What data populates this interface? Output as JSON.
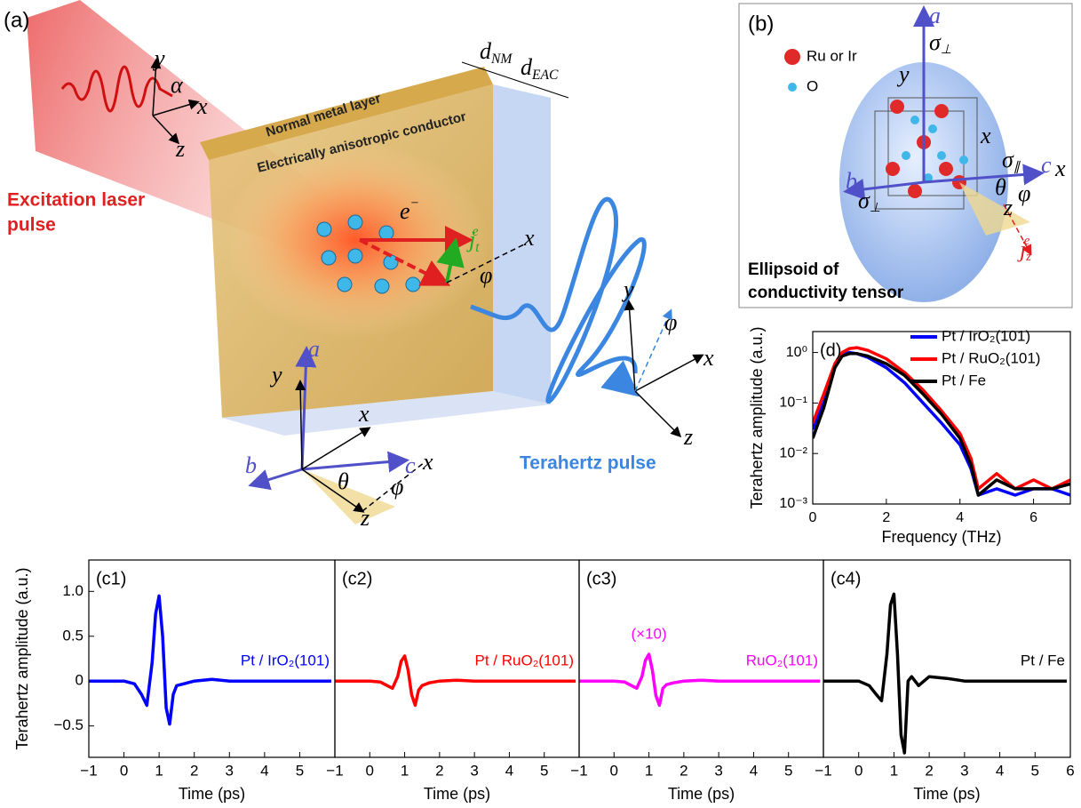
{
  "figure": {
    "panel_a": {
      "label": "(a)",
      "laser_lines": [
        "Excitation laser",
        "pulse"
      ],
      "metal": "Normal metal layer",
      "conductor": "Electrically anisotropic conductor",
      "thz": "Terahertz pulse",
      "symbols": [
        "y",
        "α",
        "x",
        "z",
        {
          "base": "e",
          "sup": "−"
        },
        {
          "base": "j",
          "sub": "t",
          "sup": "e"
        },
        "x",
        "φ",
        "y",
        "x",
        "z",
        "φ",
        "a",
        "y",
        "x",
        "b",
        "c",
        "x",
        "θ",
        "φ",
        "z",
        {
          "base": "d",
          "sub": "NM"
        },
        {
          "base": "d",
          "sub": "EAC"
        }
      ]
    },
    "panel_b": {
      "label": "(b)",
      "ru": "Ru or Ir",
      "o": "O",
      "caption_lines": [
        "Ellipsoid of",
        "conductivity tensor"
      ],
      "symbols": [
        "a",
        {
          "base": "σ",
          "sub": "⊥"
        },
        "y",
        "x",
        {
          "base": "σ",
          "sub": "∥"
        },
        "c",
        "x",
        "b",
        {
          "base": "σ",
          "sub": "⊥"
        },
        "θ",
        "φ",
        "z",
        {
          "base": "j",
          "sub": "z",
          "sup": "e"
        }
      ]
    }
  },
  "chart_data": [
    {
      "type": "line",
      "label": "(d)",
      "log_y": true,
      "x": [
        0,
        0.3,
        0.6,
        0.8,
        1.0,
        1.2,
        1.5,
        2,
        2.5,
        3,
        3.5,
        4,
        4.3,
        4.5,
        5,
        5.5,
        6,
        6.5,
        7
      ],
      "series": [
        {
          "name": "Pt / IrO₂(101)",
          "color": "#0000ff",
          "values": [
            0.03,
            0.1,
            0.5,
            0.9,
            1.0,
            0.95,
            0.8,
            0.5,
            0.25,
            0.1,
            0.04,
            0.015,
            0.005,
            0.0015,
            0.002,
            0.0015,
            0.002,
            0.002,
            0.0015
          ]
        },
        {
          "name": "Pt / RuO₂(101)",
          "color": "#ff0000",
          "values": [
            0.04,
            0.15,
            0.6,
            1.0,
            1.2,
            1.25,
            1.1,
            0.75,
            0.4,
            0.18,
            0.07,
            0.025,
            0.008,
            0.002,
            0.004,
            0.002,
            0.003,
            0.002,
            0.003
          ]
        },
        {
          "name": "Pt / Fe",
          "color": "#000000",
          "values": [
            0.02,
            0.08,
            0.5,
            0.85,
            0.95,
            0.95,
            0.85,
            0.6,
            0.35,
            0.15,
            0.06,
            0.02,
            0.006,
            0.0015,
            0.003,
            0.002,
            0.002,
            0.002,
            0.0025
          ]
        }
      ],
      "xlim": [
        0,
        7
      ],
      "xticks": [
        0,
        2,
        4,
        6
      ],
      "ylim": [
        0.001,
        2.6
      ],
      "yticks": [
        {
          "value": 0.001,
          "label": "10⁻³"
        },
        {
          "value": 0.01,
          "label": "10⁻²"
        },
        {
          "value": 0.1,
          "label": "10⁻¹"
        },
        {
          "value": 1,
          "label": "10⁰"
        }
      ],
      "xlabel": "Frequency (THz)",
      "ylabel": "Terahertz amplitude (a.u.)",
      "legend": "upper right"
    },
    {
      "type": "line",
      "label": "(c1)",
      "x": [
        -1,
        0,
        0.3,
        0.5,
        0.65,
        0.8,
        0.9,
        1.0,
        1.1,
        1.2,
        1.3,
        1.4,
        1.5,
        1.7,
        2.0,
        2.5,
        3,
        4,
        5,
        5.9
      ],
      "series": [
        {
          "name": "Pt / IrO₂(101)",
          "color": "#0000ff",
          "values": [
            0,
            0,
            -0.03,
            -0.15,
            -0.27,
            0.2,
            0.75,
            0.95,
            0.5,
            -0.3,
            -0.48,
            -0.15,
            -0.05,
            -0.03,
            0,
            0.02,
            0,
            0,
            0,
            0
          ]
        }
      ],
      "xlim": [
        -1,
        6
      ],
      "xticks": [
        {
          "value": -1,
          "label": "−1"
        },
        0,
        1,
        2,
        3,
        4,
        5
      ],
      "ylim": [
        -0.85,
        1.35
      ],
      "yticks": [
        {
          "value": -0.5,
          "label": "−0.5"
        },
        0,
        0.5,
        {
          "value": 1,
          "label": "1.0"
        }
      ],
      "xlabel": "Time (ps)",
      "ylabel": "Terahertz amplitude (a.u.)"
    },
    {
      "type": "line",
      "label": "(c2)",
      "x": [
        -1,
        0,
        0.3,
        0.5,
        0.65,
        0.8,
        0.9,
        1.0,
        1.1,
        1.2,
        1.3,
        1.4,
        1.5,
        1.7,
        2.0,
        2.5,
        3,
        4,
        5,
        5.9
      ],
      "series": [
        {
          "name": "Pt / RuO₂(101)",
          "color": "#ff0000",
          "values": [
            0,
            0,
            -0.01,
            -0.05,
            -0.08,
            0.05,
            0.22,
            0.28,
            0.12,
            -0.15,
            -0.27,
            -0.1,
            -0.05,
            -0.02,
            0,
            0.01,
            0,
            0,
            0,
            0
          ]
        }
      ],
      "xlim": [
        -1,
        6
      ],
      "xticks": [
        {
          "value": -1,
          "label": "−1"
        },
        0,
        1,
        2,
        3,
        4,
        5
      ],
      "ylim": [
        -0.85,
        1.35
      ],
      "xlabel": "Time (ps)"
    },
    {
      "type": "line",
      "label": "(c3)",
      "annotation": "(×10)",
      "x": [
        -1,
        0,
        0.3,
        0.5,
        0.65,
        0.8,
        0.9,
        1.0,
        1.1,
        1.2,
        1.3,
        1.4,
        1.5,
        1.7,
        2.0,
        2.5,
        3,
        4,
        5,
        5.9
      ],
      "series": [
        {
          "name": "RuO₂(101)",
          "color": "#ff00ff",
          "values": [
            0,
            0,
            -0.01,
            -0.05,
            -0.08,
            0.05,
            0.23,
            0.3,
            0.12,
            -0.16,
            -0.27,
            -0.08,
            -0.04,
            -0.02,
            0,
            0.01,
            0,
            0,
            0,
            0
          ]
        }
      ],
      "xlim": [
        -1,
        6
      ],
      "xticks": [
        {
          "value": -1,
          "label": "−1"
        },
        0,
        1,
        2,
        3,
        4,
        5
      ],
      "ylim": [
        -0.85,
        1.35
      ],
      "xlabel": "Time (ps)"
    },
    {
      "type": "line",
      "label": "(c4)",
      "x": [
        -1,
        0,
        0.3,
        0.5,
        0.65,
        0.8,
        0.9,
        1.0,
        1.1,
        1.2,
        1.3,
        1.4,
        1.5,
        1.7,
        2.0,
        2.5,
        3,
        4,
        5,
        5.9
      ],
      "series": [
        {
          "name": "Pt / Fe",
          "color": "#000000",
          "values": [
            0,
            0,
            -0.05,
            -0.15,
            -0.22,
            0.3,
            0.85,
            0.97,
            0.3,
            -0.6,
            -0.8,
            0,
            0.05,
            -0.05,
            0.05,
            0.03,
            0,
            0,
            0,
            0
          ]
        }
      ],
      "xlim": [
        -1,
        6
      ],
      "xticks": [
        {
          "value": -1,
          "label": "−1"
        },
        0,
        1,
        2,
        3,
        4,
        5,
        6
      ],
      "ylim": [
        -0.85,
        1.35
      ],
      "xlabel": "Time (ps)"
    }
  ]
}
